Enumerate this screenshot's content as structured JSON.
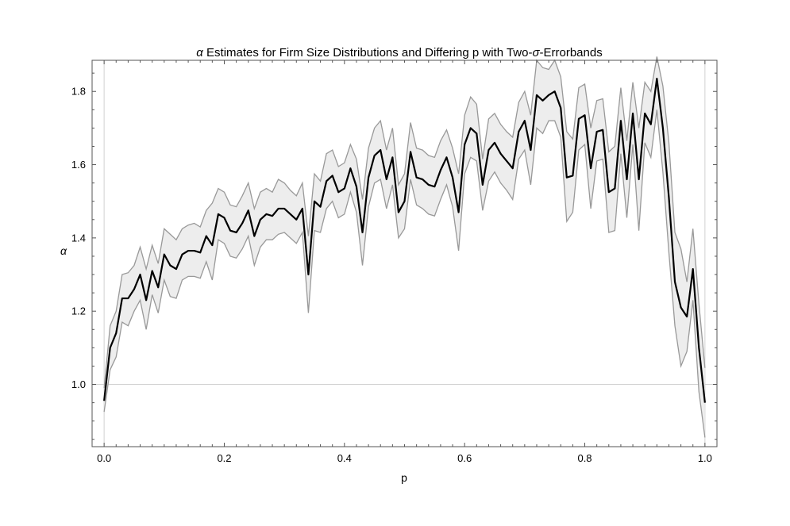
{
  "chart_data": {
    "type": "line",
    "title_sym": "α",
    "title_text": " Estimates for Firm Size Distributions and Differing p with Two-",
    "title_sym2": "σ",
    "title_text2": "-Errorbands",
    "xlabel": "p",
    "ylabel": "α",
    "xlim": [
      -0.02,
      1.02
    ],
    "ylim": [
      0.83,
      1.885
    ],
    "xticks": [
      0,
      0.2,
      0.4,
      0.6,
      0.8,
      1
    ],
    "xtick_labels": [
      "0.0",
      "0.2",
      "0.4",
      "0.6",
      "0.8",
      "1.0"
    ],
    "yticks": [
      1.0,
      1.2,
      1.4,
      1.6,
      1.8
    ],
    "ytick_labels": [
      "1.0",
      "1.2",
      "1.4",
      "1.6",
      "1.8"
    ],
    "reference_lines": {
      "y": 1.0,
      "x": [
        0,
        1
      ]
    },
    "grid": false,
    "colors": {
      "estimate": "#000000",
      "band_fill": "#ededed",
      "band_edge": "#999999",
      "reference": "#d2d2d2"
    },
    "series": [
      {
        "x": [
          0.0,
          0.01,
          0.02,
          0.03,
          0.04,
          0.05,
          0.06,
          0.07,
          0.08,
          0.09,
          0.1,
          0.11,
          0.12,
          0.13,
          0.14,
          0.15,
          0.16,
          0.17,
          0.18,
          0.19,
          0.2,
          0.21,
          0.22,
          0.23,
          0.24,
          0.25,
          0.26,
          0.27,
          0.28,
          0.29,
          0.3,
          0.31,
          0.32,
          0.33,
          0.34,
          0.35,
          0.36,
          0.37,
          0.38,
          0.39,
          0.4,
          0.41,
          0.42,
          0.43,
          0.44,
          0.45,
          0.46,
          0.47,
          0.48,
          0.49,
          0.5,
          0.51,
          0.52,
          0.53,
          0.54,
          0.55,
          0.56,
          0.57,
          0.58,
          0.59,
          0.6,
          0.61,
          0.62,
          0.63,
          0.64,
          0.65,
          0.66,
          0.67,
          0.68,
          0.69,
          0.7,
          0.71,
          0.72,
          0.73,
          0.74,
          0.75,
          0.76,
          0.77,
          0.78,
          0.79,
          0.8,
          0.81,
          0.82,
          0.83,
          0.84,
          0.85,
          0.86,
          0.87,
          0.88,
          0.89,
          0.9,
          0.91,
          0.92,
          0.93,
          0.94,
          0.95,
          0.96,
          0.97,
          0.98,
          0.99,
          1.0
        ],
        "y": [
          0.955,
          1.1,
          1.14,
          1.235,
          1.235,
          1.26,
          1.3,
          1.23,
          1.31,
          1.265,
          1.355,
          1.325,
          1.315,
          1.355,
          1.365,
          1.365,
          1.36,
          1.405,
          1.38,
          1.465,
          1.455,
          1.42,
          1.415,
          1.44,
          1.475,
          1.405,
          1.45,
          1.465,
          1.46,
          1.48,
          1.48,
          1.465,
          1.45,
          1.48,
          1.3,
          1.5,
          1.485,
          1.555,
          1.57,
          1.525,
          1.535,
          1.59,
          1.54,
          1.415,
          1.565,
          1.625,
          1.64,
          1.56,
          1.62,
          1.47,
          1.5,
          1.635,
          1.565,
          1.56,
          1.545,
          1.54,
          1.585,
          1.62,
          1.565,
          1.47,
          1.655,
          1.7,
          1.685,
          1.545,
          1.64,
          1.66,
          1.63,
          1.61,
          1.59,
          1.69,
          1.72,
          1.64,
          1.79,
          1.775,
          1.79,
          1.8,
          1.755,
          1.565,
          1.57,
          1.725,
          1.735,
          1.59,
          1.69,
          1.695,
          1.525,
          1.535,
          1.72,
          1.56,
          1.74,
          1.56,
          1.74,
          1.71,
          1.835,
          1.7,
          1.51,
          1.28,
          1.21,
          1.185,
          1.315,
          1.1,
          0.95
        ],
        "lower": [
          0.925,
          1.04,
          1.075,
          1.17,
          1.16,
          1.2,
          1.23,
          1.15,
          1.245,
          1.195,
          1.285,
          1.24,
          1.235,
          1.285,
          1.295,
          1.295,
          1.29,
          1.335,
          1.285,
          1.395,
          1.385,
          1.35,
          1.345,
          1.37,
          1.405,
          1.325,
          1.375,
          1.395,
          1.395,
          1.41,
          1.415,
          1.4,
          1.385,
          1.415,
          1.195,
          1.42,
          1.415,
          1.48,
          1.5,
          1.455,
          1.465,
          1.525,
          1.47,
          1.325,
          1.485,
          1.55,
          1.56,
          1.48,
          1.545,
          1.4,
          1.425,
          1.56,
          1.49,
          1.48,
          1.465,
          1.46,
          1.505,
          1.545,
          1.485,
          1.365,
          1.575,
          1.62,
          1.61,
          1.475,
          1.555,
          1.58,
          1.55,
          1.53,
          1.505,
          1.615,
          1.64,
          1.545,
          1.7,
          1.685,
          1.72,
          1.72,
          1.675,
          1.445,
          1.47,
          1.64,
          1.655,
          1.48,
          1.61,
          1.615,
          1.415,
          1.42,
          1.63,
          1.455,
          1.655,
          1.42,
          1.66,
          1.62,
          1.75,
          1.58,
          1.36,
          1.16,
          1.05,
          1.09,
          1.23,
          0.98,
          0.855
        ],
        "upper": [
          0.99,
          1.16,
          1.2,
          1.3,
          1.305,
          1.325,
          1.375,
          1.315,
          1.38,
          1.33,
          1.425,
          1.41,
          1.395,
          1.425,
          1.435,
          1.44,
          1.43,
          1.475,
          1.495,
          1.535,
          1.525,
          1.49,
          1.485,
          1.515,
          1.55,
          1.48,
          1.525,
          1.535,
          1.525,
          1.56,
          1.55,
          1.53,
          1.515,
          1.55,
          1.405,
          1.575,
          1.555,
          1.63,
          1.64,
          1.595,
          1.605,
          1.655,
          1.615,
          1.505,
          1.645,
          1.7,
          1.72,
          1.64,
          1.7,
          1.545,
          1.575,
          1.715,
          1.645,
          1.64,
          1.625,
          1.62,
          1.665,
          1.695,
          1.645,
          1.575,
          1.735,
          1.785,
          1.765,
          1.615,
          1.725,
          1.74,
          1.71,
          1.69,
          1.675,
          1.77,
          1.8,
          1.735,
          1.885,
          1.865,
          1.86,
          1.885,
          1.84,
          1.69,
          1.67,
          1.81,
          1.82,
          1.7,
          1.775,
          1.78,
          1.635,
          1.65,
          1.81,
          1.665,
          1.825,
          1.7,
          1.825,
          1.8,
          1.895,
          1.815,
          1.66,
          1.415,
          1.37,
          1.28,
          1.425,
          1.22,
          1.045
        ]
      }
    ]
  }
}
